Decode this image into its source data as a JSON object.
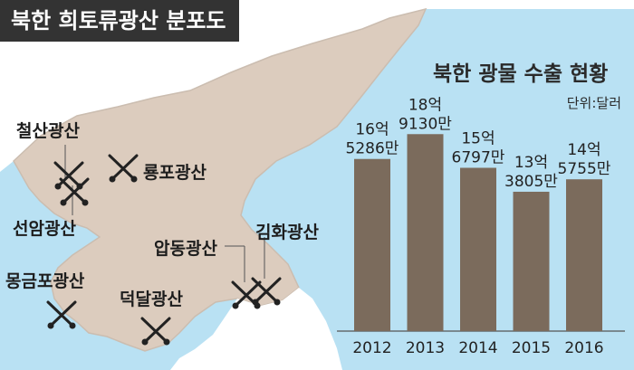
{
  "header": {
    "title": "북한 희토류광산 분포도"
  },
  "map": {
    "mines": [
      {
        "key": "cheolsan",
        "label": "철산광산"
      },
      {
        "key": "ryongpo",
        "label": "룡포광산"
      },
      {
        "key": "seonam",
        "label": "선암광산"
      },
      {
        "key": "mongeumpo",
        "label": "몽금포광산"
      },
      {
        "key": "deokdal",
        "label": "덕달광산"
      },
      {
        "key": "apdong",
        "label": "압동광산"
      },
      {
        "key": "gimhwa",
        "label": "김화광산"
      }
    ],
    "colors": {
      "sea": "#b9e1f3",
      "land": "#dcccbe",
      "foreign_land": "#ffffff",
      "border": "#c9bcb0"
    }
  },
  "chart_data": {
    "type": "bar",
    "title": "북한 광물 수출 현황",
    "unit": "단위:달러",
    "categories": [
      "2012",
      "2013",
      "2014",
      "2015",
      "2016"
    ],
    "values": [
      1652860000,
      1891300000,
      1567970000,
      1338050000,
      1457550000
    ],
    "value_labels": [
      [
        "16억",
        "5286만"
      ],
      [
        "18억",
        "9130만"
      ],
      [
        "15억",
        "6797만"
      ],
      [
        "13억",
        "3805만"
      ],
      [
        "14억",
        "5755만"
      ]
    ],
    "bar_color": "#7b6b5c",
    "legend": "none",
    "grid": false
  }
}
